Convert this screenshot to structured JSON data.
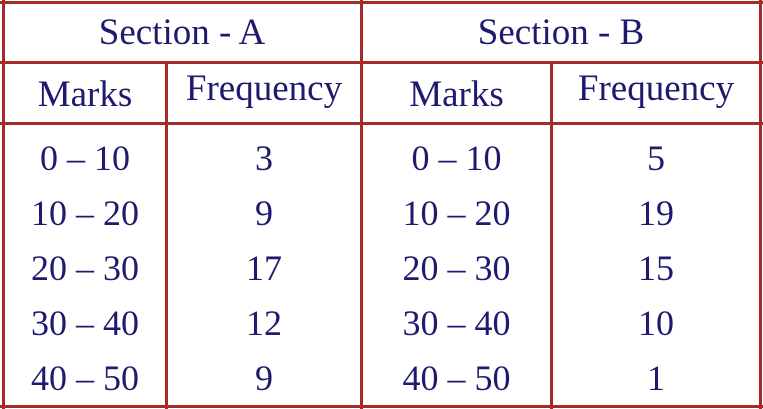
{
  "colors": {
    "border": "#a52a2a",
    "text": "#1e1a6e"
  },
  "sections": [
    {
      "title": "Section - A",
      "headers": [
        "Marks",
        "Frequency"
      ],
      "rows": [
        [
          "0 – 10",
          "3"
        ],
        [
          "10 – 20",
          "9"
        ],
        [
          "20 – 30",
          "17"
        ],
        [
          "30 – 40",
          "12"
        ],
        [
          "40 – 50",
          "9"
        ]
      ]
    },
    {
      "title": "Section - B",
      "headers": [
        "Marks",
        "Frequency"
      ],
      "rows": [
        [
          "0 – 10",
          "5"
        ],
        [
          "10 – 20",
          "19"
        ],
        [
          "20 – 30",
          "15"
        ],
        [
          "30 – 40",
          "10"
        ],
        [
          "40 – 50",
          "1"
        ]
      ]
    }
  ]
}
